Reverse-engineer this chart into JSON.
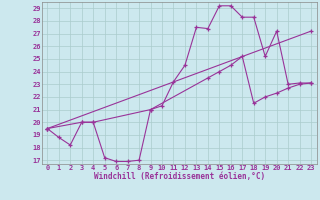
{
  "title": "",
  "xlabel": "Windchill (Refroidissement éolien,°C)",
  "bg_color": "#cce8ee",
  "grid_color": "#aacccc",
  "line_color": "#993399",
  "xlim": [
    -0.5,
    23.5
  ],
  "ylim": [
    16.7,
    29.5
  ],
  "yticks": [
    17,
    18,
    19,
    20,
    21,
    22,
    23,
    24,
    25,
    26,
    27,
    28,
    29
  ],
  "xticks": [
    0,
    1,
    2,
    3,
    4,
    5,
    6,
    7,
    8,
    9,
    10,
    11,
    12,
    13,
    14,
    15,
    16,
    17,
    18,
    19,
    20,
    21,
    22,
    23
  ],
  "line1_x": [
    0,
    1,
    2,
    3,
    4,
    5,
    6,
    7,
    8,
    9,
    10,
    11,
    12,
    13,
    14,
    15,
    16,
    17,
    18,
    19,
    20,
    21,
    22,
    23
  ],
  "line1_y": [
    19.5,
    18.8,
    18.2,
    20.0,
    20.0,
    17.2,
    16.9,
    16.9,
    17.0,
    21.0,
    21.3,
    23.2,
    24.5,
    27.5,
    27.4,
    29.2,
    29.2,
    28.3,
    28.3,
    25.2,
    27.2,
    23.0,
    23.1,
    23.1
  ],
  "line2_x": [
    0,
    3,
    4,
    9,
    14,
    15,
    16,
    17,
    18,
    19,
    20,
    21,
    22,
    23
  ],
  "line2_y": [
    19.5,
    20.0,
    20.0,
    21.0,
    23.5,
    24.0,
    24.5,
    25.2,
    21.5,
    22.0,
    22.3,
    22.7,
    23.0,
    23.1
  ],
  "line3_x": [
    0,
    23
  ],
  "line3_y": [
    19.5,
    27.2
  ]
}
